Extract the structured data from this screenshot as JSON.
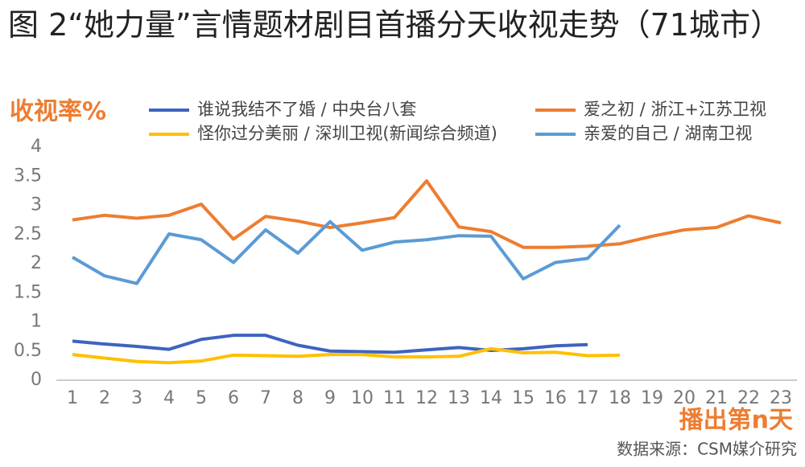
{
  "chart_data": {
    "type": "line",
    "title": "图 2“她力量”言情题材剧目首播分天收视走势（71城市）",
    "y_label": "收视率%",
    "x_label": "播出第n天",
    "source": "数据来源：CSM媒介研究",
    "categories": [
      "1",
      "2",
      "3",
      "4",
      "5",
      "6",
      "7",
      "8",
      "9",
      "10",
      "11",
      "12",
      "13",
      "14",
      "15",
      "16",
      "17",
      "18",
      "19",
      "20",
      "21",
      "22",
      "23"
    ],
    "series": [
      {
        "name": "谁说我结不了婚 / 中央台八套",
        "color": "#3e63c0",
        "values": [
          0.67,
          0.62,
          0.58,
          0.53,
          0.7,
          0.77,
          0.77,
          0.6,
          0.5,
          0.49,
          0.48,
          0.52,
          0.56,
          0.51,
          0.54,
          0.59,
          0.61,
          null,
          null,
          null,
          null,
          null,
          null
        ]
      },
      {
        "name": "爱之初 / 浙江+江苏卫视",
        "color": "#ed7d31",
        "values": [
          2.75,
          2.83,
          2.78,
          2.83,
          3.02,
          2.42,
          2.81,
          2.73,
          2.62,
          2.7,
          2.79,
          3.42,
          2.63,
          2.55,
          2.28,
          2.28,
          2.3,
          2.34,
          2.47,
          2.58,
          2.62,
          2.82,
          2.7
        ]
      },
      {
        "name": "怪你过分美丽 / 深圳卫视(新闻综合频道)",
        "color": "#ffc000",
        "values": [
          0.44,
          0.38,
          0.32,
          0.3,
          0.33,
          0.43,
          0.42,
          0.41,
          0.44,
          0.44,
          0.4,
          0.4,
          0.41,
          0.54,
          0.47,
          0.48,
          0.42,
          0.43,
          null,
          null,
          null,
          null,
          null
        ]
      },
      {
        "name": "亲爱的自己 / 湖南卫视",
        "color": "#5b9bd5",
        "values": [
          2.11,
          1.79,
          1.66,
          2.51,
          2.41,
          2.02,
          2.58,
          2.18,
          2.72,
          2.23,
          2.37,
          2.41,
          2.48,
          2.47,
          1.74,
          2.02,
          2.09,
          2.66,
          null,
          null,
          null,
          null,
          null
        ]
      }
    ],
    "ylim": [
      0,
      4
    ],
    "yticks": [
      0,
      0.5,
      1,
      1.5,
      2,
      2.5,
      3,
      3.5,
      4
    ],
    "grid": false
  }
}
